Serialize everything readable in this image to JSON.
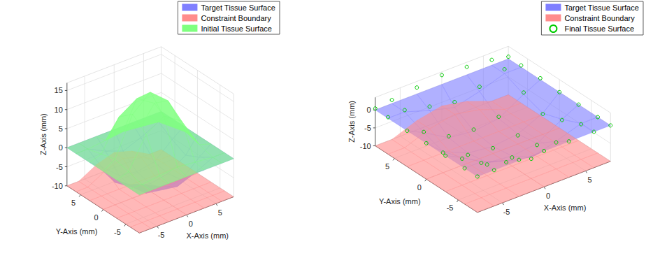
{
  "chart_data": [
    {
      "type": "surface3d",
      "xlabel": "X-Axis (mm)",
      "ylabel": "Y-Axis (mm)",
      "zlabel": "Z-Axis (mm)",
      "xlim": [
        -8,
        8
      ],
      "ylim": [
        -8,
        8
      ],
      "zlim": [
        -10,
        17
      ],
      "xticks": [
        -5,
        0,
        5
      ],
      "yticks": [
        -5,
        0,
        5
      ],
      "zticks": [
        -10,
        -5,
        0,
        5,
        10,
        15
      ],
      "grid": true,
      "legend": "northeast",
      "series": [
        {
          "name": "Target Tissue Surface",
          "color": "#7f7fff",
          "type": "surface",
          "x": [
            -8,
            -6,
            -3,
            0,
            3,
            6,
            8
          ],
          "y": [
            -8,
            -6,
            -3,
            0,
            3,
            6,
            8
          ],
          "z": [
            [
              0,
              0,
              0,
              0,
              0,
              0,
              0
            ],
            [
              0,
              0,
              -2.3,
              -4.1,
              -2.3,
              0,
              0
            ],
            [
              0,
              -2.3,
              -6.4,
              -7.2,
              -6.4,
              -2.3,
              0
            ],
            [
              0,
              -4.1,
              -7.2,
              -8,
              -7.2,
              -4.1,
              0
            ],
            [
              0,
              -2.3,
              -6.4,
              -7.2,
              -6.4,
              -2.3,
              0
            ],
            [
              0,
              0,
              -2.3,
              -4.1,
              -2.3,
              0,
              0
            ],
            [
              0,
              0,
              0,
              0,
              0,
              0,
              0
            ]
          ]
        },
        {
          "name": "Constraint Boundary",
          "color": "#ff8c8c",
          "type": "surface",
          "x": [
            -8,
            -6,
            -3,
            0,
            3,
            6,
            8
          ],
          "y": [
            -8,
            -6,
            -3,
            0,
            3,
            6,
            8
          ],
          "z": [
            [
              -10,
              -10,
              -10,
              -10,
              -10,
              -10,
              -10
            ],
            [
              -10,
              -10,
              -10,
              -10,
              -10,
              -10,
              -10
            ],
            [
              -10,
              -10,
              -10,
              -10,
              -10,
              -10,
              -10
            ],
            [
              -10,
              -10,
              -10,
              -10,
              -10,
              -10,
              -10
            ],
            [
              -10,
              -10,
              -10,
              -10,
              -10,
              -10,
              -10
            ],
            [
              -10,
              -10,
              -7.4,
              -6,
              -7.4,
              -10,
              -10
            ],
            [
              -10,
              -10,
              -7.4,
              -6,
              -7.4,
              -10,
              -10
            ]
          ]
        },
        {
          "name": "Initial Tissue Surface",
          "color": "#7fff7f",
          "type": "surface",
          "x": [
            -8,
            -6,
            -3,
            0,
            3,
            6,
            8
          ],
          "y": [
            -8,
            -6,
            -3,
            0,
            3,
            6,
            8
          ],
          "z": [
            [
              0,
              0,
              0,
              0,
              0,
              0,
              0
            ],
            [
              0,
              0,
              0.5,
              1,
              0.5,
              0,
              0
            ],
            [
              0,
              1,
              9,
              12,
              9,
              1,
              0
            ],
            [
              0,
              2,
              12,
              16,
              12,
              2,
              0
            ],
            [
              0,
              1,
              9,
              12,
              9,
              1,
              0
            ],
            [
              0,
              0,
              0.5,
              1,
              0.5,
              0,
              0
            ],
            [
              0,
              0,
              0,
              0,
              0,
              0,
              0
            ]
          ]
        }
      ]
    },
    {
      "type": "surface3d",
      "xlabel": "X-Axis (mm)",
      "ylabel": "Y-Axis (mm)",
      "zlabel": "Z-Axis (mm)",
      "xlim": [
        -8,
        8
      ],
      "ylim": [
        -8,
        8
      ],
      "zlim": [
        -10,
        3.5
      ],
      "xticks": [
        -5,
        0,
        5
      ],
      "yticks": [
        -5,
        0,
        5
      ],
      "zticks": [
        -10,
        -5,
        0
      ],
      "grid": true,
      "legend": "northeast",
      "series": [
        {
          "name": "Target Tissue Surface",
          "color": "#7f7fff",
          "type": "surface",
          "x": [
            -8,
            -6,
            -3,
            0,
            3,
            6,
            8
          ],
          "y": [
            -8,
            -6,
            -3,
            0,
            3,
            6,
            8
          ],
          "z": [
            [
              0,
              0,
              0,
              0,
              0,
              0,
              0
            ],
            [
              0,
              0,
              -2.3,
              -4.1,
              -2.3,
              0,
              0
            ],
            [
              0,
              -2.3,
              -6.4,
              -7.2,
              -6.4,
              -2.3,
              0
            ],
            [
              0,
              -4.1,
              -7.2,
              -8,
              -7.2,
              -4.1,
              0
            ],
            [
              0,
              -2.3,
              -6.4,
              -7.2,
              -6.4,
              -2.3,
              0
            ],
            [
              0,
              0,
              -2.3,
              -4.1,
              -2.3,
              0,
              0
            ],
            [
              0,
              0,
              0,
              0,
              0,
              0,
              0
            ]
          ]
        },
        {
          "name": "Constraint Boundary",
          "color": "#ff8c8c",
          "type": "surface",
          "x": [
            -8,
            -6,
            -3,
            0,
            3,
            6,
            8
          ],
          "y": [
            -8,
            -6,
            -3,
            0,
            3,
            6,
            8
          ],
          "z": [
            [
              -10,
              -10,
              -10,
              -10,
              -10,
              -10,
              -10
            ],
            [
              -10,
              -10,
              -10,
              -10,
              -10,
              -10,
              -10
            ],
            [
              -10,
              -10,
              -10,
              -10,
              -10,
              -10,
              -10
            ],
            [
              -10,
              -10,
              -10,
              -10,
              -10,
              -10,
              -10
            ],
            [
              -10,
              -10,
              -10,
              -10,
              -10,
              -10,
              -10
            ],
            [
              -10,
              -10,
              -7.4,
              -6,
              -7.4,
              -10,
              -10
            ],
            [
              -10,
              -10,
              -7.4,
              -6,
              -7.4,
              -10,
              -10
            ]
          ]
        },
        {
          "name": "Final Tissue Surface",
          "color": "#00cc00",
          "type": "scatter",
          "marker": "circle",
          "x": [
            -8,
            -6,
            -3,
            0,
            3,
            6,
            8
          ],
          "y": [
            -8,
            -6,
            -3,
            0,
            3,
            6,
            8
          ],
          "z": [
            [
              0,
              0,
              0.2,
              0,
              0,
              0,
              0
            ],
            [
              0,
              -0.3,
              -2.8,
              -4.5,
              -2.6,
              -0.2,
              0
            ],
            [
              0,
              -2.6,
              -6.9,
              -7.6,
              -6.8,
              -2.5,
              0
            ],
            [
              0,
              -4.4,
              -7.7,
              -8.5,
              -7.6,
              -4.3,
              0
            ],
            [
              0,
              -2.1,
              -6,
              -6.8,
              -5.9,
              -1.8,
              0.4
            ],
            [
              0.3,
              0.5,
              -1.2,
              -2.6,
              -1,
              1.2,
              0.5
            ],
            [
              0.4,
              1,
              1.8,
              2.6,
              2.2,
              1.5,
              0.6
            ]
          ]
        }
      ]
    }
  ]
}
